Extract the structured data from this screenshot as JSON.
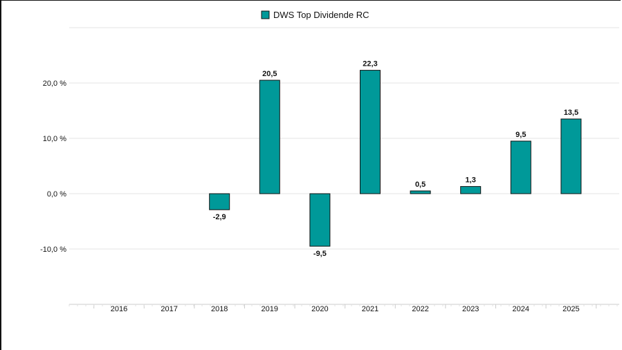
{
  "chart_data": {
    "type": "bar",
    "categories": [
      "2016",
      "2017",
      "2018",
      "2019",
      "2020",
      "2021",
      "2022",
      "2023",
      "2024",
      "2025"
    ],
    "series": [
      {
        "name": "DWS Top Dividende RC",
        "values": [
          null,
          null,
          -2.9,
          20.5,
          -9.5,
          22.3,
          0.5,
          1.3,
          9.5,
          13.5
        ]
      }
    ],
    "value_labels": [
      "",
      "",
      "-2,9",
      "20,5",
      "-9,5",
      "22,3",
      "0,5",
      "1,3",
      "9,5",
      "13,5"
    ],
    "yticks": [
      20,
      10,
      0,
      -10
    ],
    "ytick_labels": [
      "20,0 %",
      "10,0 %",
      "0,0 %",
      "-10,0 %"
    ],
    "ylim": [
      -20,
      30
    ],
    "grid": true,
    "legend_position": "top-center",
    "colors": {
      "bar_fill": "#009999",
      "bar_stroke": "#111111",
      "grid": "#e3e3e3",
      "axis": "#cccccc"
    }
  }
}
